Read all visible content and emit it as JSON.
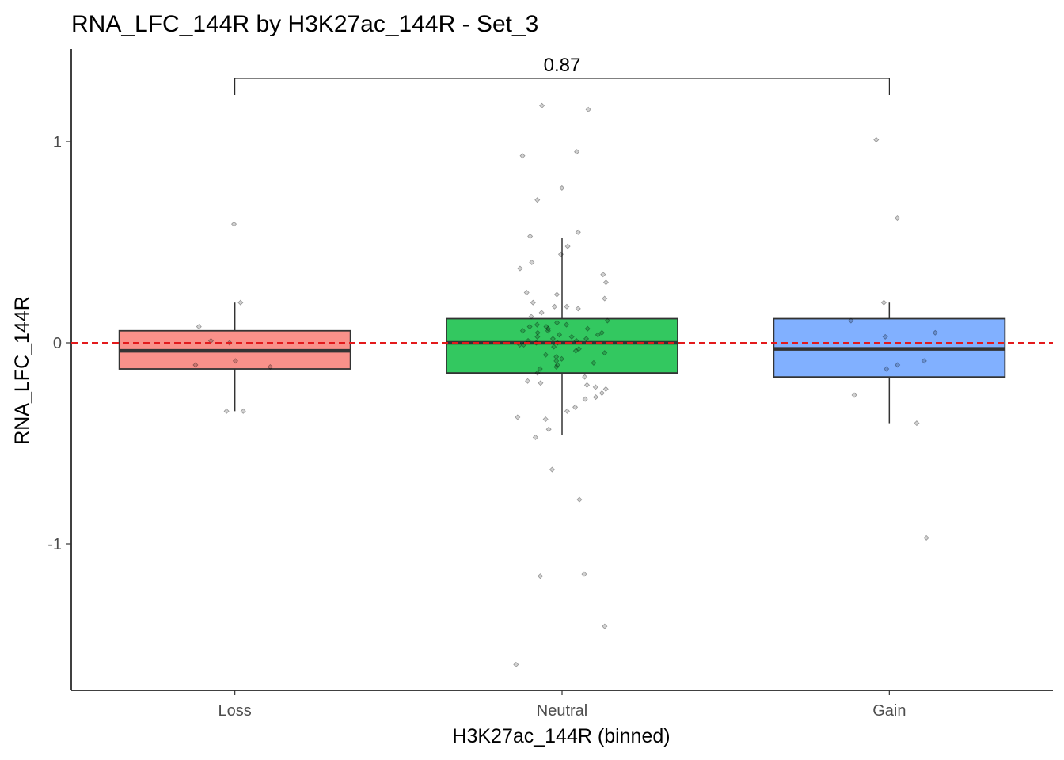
{
  "chart_data": {
    "type": "box",
    "title": "RNA_LFC_144R by H3K27ac_144R - Set_3",
    "xlabel": "H3K27ac_144R (binned)",
    "ylabel": "RNA_LFC_144R",
    "categories": [
      "Loss",
      "Neutral",
      "Gain"
    ],
    "colors": [
      "#f8766d",
      "#00ba38",
      "#619cff"
    ],
    "ylim": [
      -1.73,
      1.45
    ],
    "yticks": [
      -1,
      0,
      1
    ],
    "ytick_labels": [
      "-1",
      "0",
      "1"
    ],
    "reference_line": {
      "y": 0,
      "color": "#e31a1c",
      "style": "dashed"
    },
    "boxes": [
      {
        "category": "Loss",
        "whisker_low": -0.34,
        "q1": -0.13,
        "median": -0.04,
        "q3": 0.06,
        "whisker_high": 0.2
      },
      {
        "category": "Neutral",
        "whisker_low": -0.46,
        "q1": -0.15,
        "median": 0.0,
        "q3": 0.12,
        "whisker_high": 0.52
      },
      {
        "category": "Gain",
        "whisker_low": -0.4,
        "q1": -0.17,
        "median": -0.03,
        "q3": 0.12,
        "whisker_high": 0.2
      }
    ],
    "points": [
      {
        "category": "Loss",
        "values": [
          0.59,
          0.2,
          0.08,
          0.01,
          0.0,
          -0.09,
          -0.11,
          -0.12,
          -0.34,
          -0.34
        ]
      },
      {
        "category": "Neutral",
        "values": [
          1.18,
          1.16,
          0.95,
          0.93,
          0.77,
          0.71,
          0.55,
          0.53,
          0.48,
          0.44,
          0.4,
          0.37,
          0.34,
          0.3,
          0.25,
          0.24,
          0.22,
          0.2,
          0.18,
          0.18,
          0.17,
          0.15,
          0.13,
          0.11,
          0.1,
          0.09,
          0.09,
          0.08,
          0.08,
          0.07,
          0.07,
          0.06,
          0.06,
          0.05,
          0.05,
          0.04,
          0.04,
          0.03,
          0.03,
          0.02,
          0.02,
          0.01,
          0.01,
          0.0,
          0.0,
          -0.01,
          -0.01,
          -0.02,
          -0.03,
          -0.04,
          -0.05,
          -0.06,
          -0.07,
          -0.08,
          -0.09,
          -0.1,
          -0.11,
          -0.12,
          -0.13,
          -0.15,
          -0.17,
          -0.19,
          -0.2,
          -0.21,
          -0.22,
          -0.23,
          -0.25,
          -0.27,
          -0.28,
          -0.32,
          -0.34,
          -0.37,
          -0.38,
          -0.43,
          -0.47,
          -0.63,
          -0.78,
          -1.15,
          -1.16,
          -1.41,
          -1.6
        ]
      },
      {
        "category": "Gain",
        "values": [
          1.01,
          0.62,
          0.2,
          0.11,
          0.05,
          0.03,
          -0.09,
          -0.11,
          -0.13,
          -0.26,
          -0.4,
          -0.97
        ]
      }
    ],
    "comparisons": [
      {
        "from": "Loss",
        "to": "Gain",
        "label": "0.87"
      }
    ],
    "grid": false
  }
}
